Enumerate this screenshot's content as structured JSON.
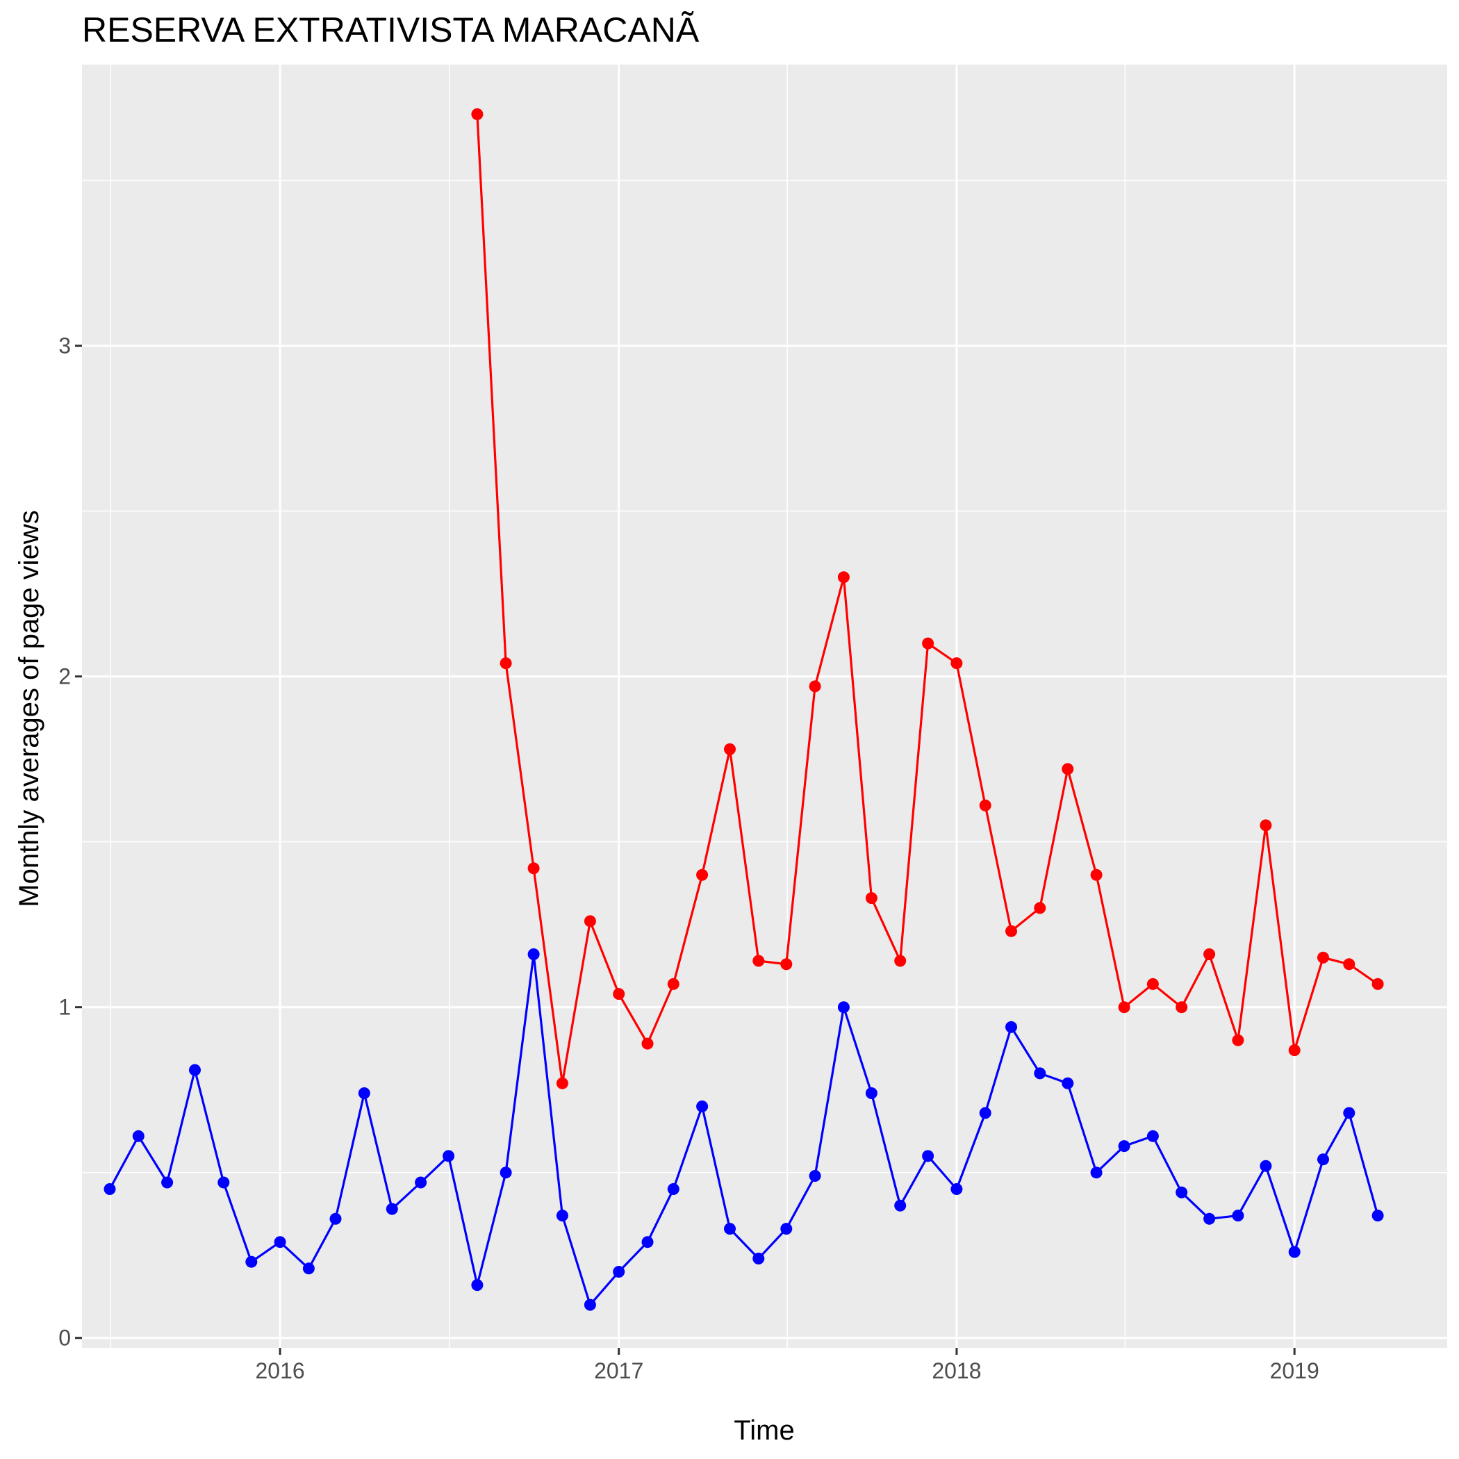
{
  "chart_data": {
    "type": "line",
    "title": "RESERVA EXTRATIVISTA MARACANÃ",
    "xlabel": "Time",
    "ylabel": "Monthly averages of page views",
    "xlim": [
      "2015-06-01",
      "2019-06-15"
    ],
    "ylim": [
      -0.03,
      3.85
    ],
    "x_ticks": [
      "2016-01-01",
      "2017-01-01",
      "2018-01-01",
      "2019-01-01"
    ],
    "x_tick_labels": [
      "2016",
      "2017",
      "2018",
      "2019"
    ],
    "y_ticks": [
      0,
      1,
      2,
      3
    ],
    "y_tick_labels": [
      "0",
      "1",
      "2",
      "3"
    ],
    "grid": true,
    "legend": "none",
    "series": [
      {
        "color": "#0000ff",
        "x": [
          "2015-07-01",
          "2015-08-01",
          "2015-09-01",
          "2015-10-01",
          "2015-11-01",
          "2015-12-01",
          "2016-01-01",
          "2016-02-01",
          "2016-03-01",
          "2016-04-01",
          "2016-05-01",
          "2016-06-01",
          "2016-07-01",
          "2016-08-01",
          "2016-09-01",
          "2016-10-01",
          "2016-11-01",
          "2016-12-01",
          "2017-01-01",
          "2017-02-01",
          "2017-03-01",
          "2017-04-01",
          "2017-05-01",
          "2017-06-01",
          "2017-07-01",
          "2017-08-01",
          "2017-09-01",
          "2017-10-01",
          "2017-11-01",
          "2017-12-01",
          "2018-01-01",
          "2018-02-01",
          "2018-03-01",
          "2018-04-01",
          "2018-05-01",
          "2018-06-01",
          "2018-07-01",
          "2018-08-01",
          "2018-09-01",
          "2018-10-01",
          "2018-11-01",
          "2018-12-01",
          "2019-01-01",
          "2019-02-01",
          "2019-03-01",
          "2019-04-01"
        ],
        "values": [
          0.45,
          0.61,
          0.47,
          0.81,
          0.47,
          0.23,
          0.29,
          0.21,
          0.36,
          0.74,
          0.39,
          0.47,
          0.55,
          0.16,
          0.5,
          1.16,
          0.37,
          0.1,
          0.2,
          0.29,
          0.45,
          0.7,
          0.33,
          0.24,
          0.33,
          0.49,
          1.0,
          0.74,
          0.4,
          0.55,
          0.45,
          0.68,
          0.94,
          0.8,
          0.77,
          0.5,
          0.58,
          0.61,
          0.44,
          0.36,
          0.37,
          0.52,
          0.26,
          0.54,
          0.68,
          0.37
        ]
      },
      {
        "color": "#ff0000",
        "x": [
          "2016-08-01",
          "2016-09-01",
          "2016-10-01",
          "2016-11-01",
          "2016-12-01",
          "2017-01-01",
          "2017-02-01",
          "2017-03-01",
          "2017-04-01",
          "2017-05-01",
          "2017-06-01",
          "2017-07-01",
          "2017-08-01",
          "2017-09-01",
          "2017-10-01",
          "2017-11-01",
          "2017-12-01",
          "2018-01-01",
          "2018-02-01",
          "2018-03-01",
          "2018-04-01",
          "2018-05-01",
          "2018-06-01",
          "2018-07-01",
          "2018-08-01",
          "2018-09-01",
          "2018-10-01",
          "2018-11-01",
          "2018-12-01",
          "2019-01-01",
          "2019-02-01",
          "2019-03-01",
          "2019-04-01"
        ],
        "values": [
          3.7,
          2.04,
          1.42,
          0.77,
          1.26,
          1.04,
          0.89,
          1.07,
          1.4,
          1.78,
          1.14,
          1.13,
          1.97,
          2.3,
          1.33,
          1.14,
          2.1,
          2.04,
          1.61,
          1.23,
          1.3,
          1.72,
          1.4,
          1.0,
          1.07,
          1.0,
          1.16,
          0.9,
          1.55,
          0.87,
          1.15,
          1.13,
          1.07
        ]
      }
    ]
  }
}
